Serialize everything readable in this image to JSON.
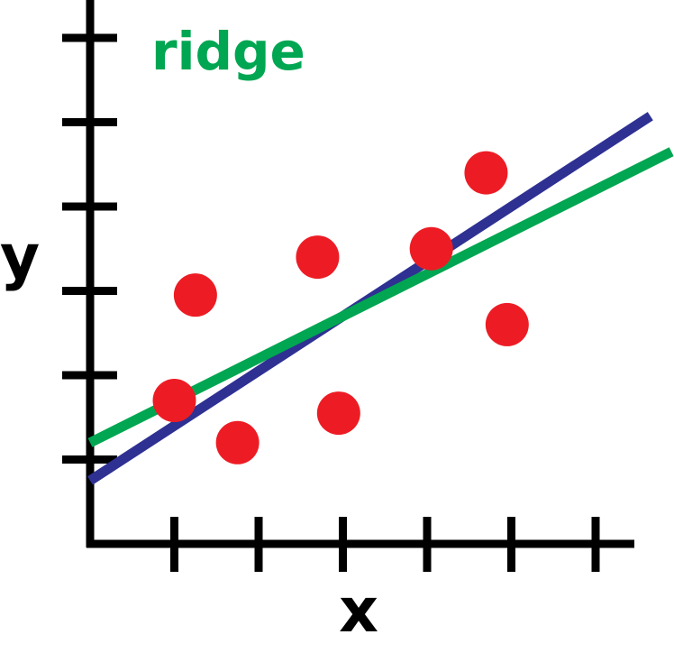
{
  "chart_data": {
    "type": "scatter",
    "title": "",
    "xlabel": "x",
    "ylabel": "y",
    "xlim": [
      0,
      6.5
    ],
    "ylim": [
      0,
      6.5
    ],
    "grid": false,
    "x_ticks": [
      1,
      2,
      3,
      4,
      5,
      6
    ],
    "y_ticks": [
      1,
      2,
      3,
      4,
      5,
      6
    ],
    "points": [
      {
        "x": 1.0,
        "y": 1.7
      },
      {
        "x": 1.25,
        "y": 2.95
      },
      {
        "x": 1.75,
        "y": 1.2
      },
      {
        "x": 2.7,
        "y": 3.4
      },
      {
        "x": 2.95,
        "y": 1.55
      },
      {
        "x": 4.05,
        "y": 3.5
      },
      {
        "x": 4.7,
        "y": 4.4
      },
      {
        "x": 4.95,
        "y": 2.6
      }
    ],
    "series": [
      {
        "name": "",
        "intercept": 0.75,
        "slope": 0.65
      },
      {
        "name": "ridge",
        "intercept": 1.2,
        "slope": 0.5
      }
    ],
    "colors": {
      "points": "#ed1c24",
      "ols_line": "#2e3192",
      "ridge_line": "#00a651",
      "axis": "#000000"
    }
  }
}
